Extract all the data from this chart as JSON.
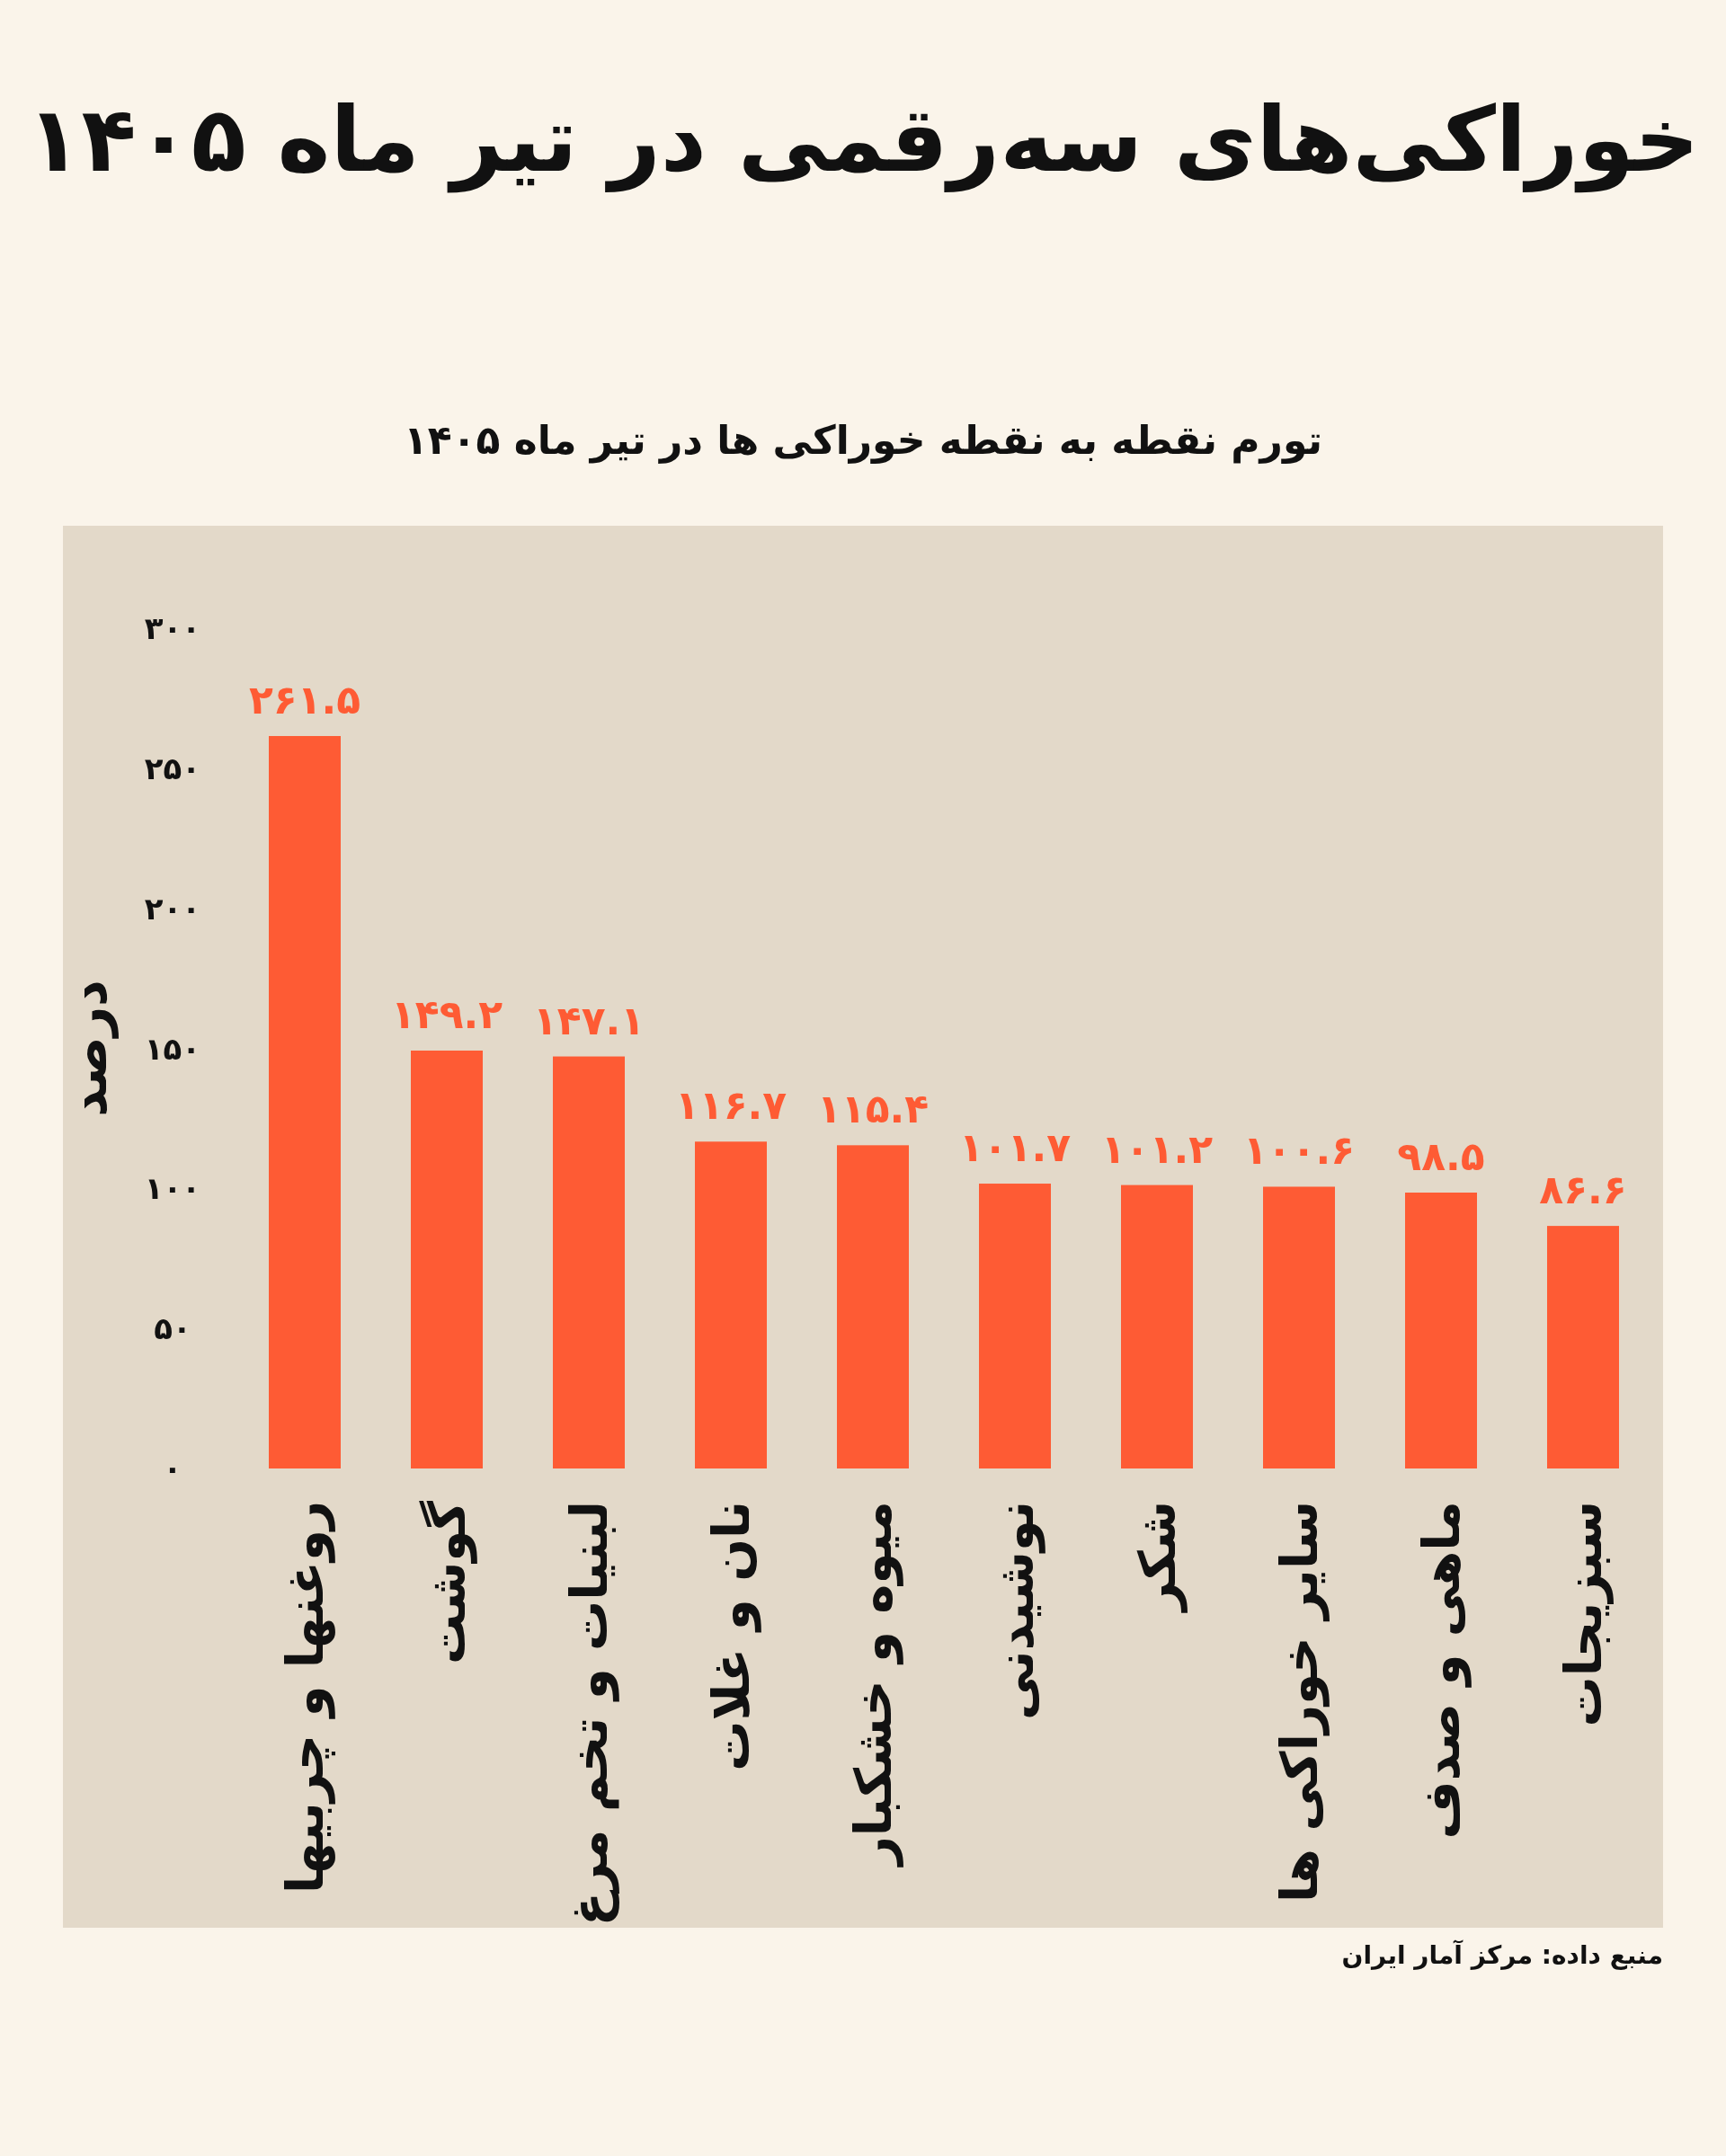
{
  "chart_data": {
    "type": "bar",
    "title": "خوراکی‌های سه‌رقمی در تیر ماه ۱۴۰۵",
    "subtitle": "تورم نقطه به نقطه خوراکی ها در تیر ماه ۱۴۰۵",
    "ylabel": "درصد",
    "categories": [
      "روغنها و چربیها",
      "گوشت",
      "لبنیات و تخم مرغ",
      "نان و غلات",
      "میوه و خشکبار",
      "نوشیدنی",
      "شکر",
      "سایر خوراکی ها",
      "ماهی و صدف",
      "سبزیجات"
    ],
    "values": [
      261.5,
      149.2,
      147.1,
      116.7,
      115.4,
      101.7,
      101.2,
      100.6,
      98.5,
      86.6
    ],
    "value_labels": [
      "۲۶۱.۵",
      "۱۴۹.۲",
      "۱۴۷.۱",
      "۱۱۶.۷",
      "۱۱۵.۴",
      "۱۰۱.۷",
      "۱۰۱.۲",
      "۱۰۰.۶",
      "۹۸.۵",
      "۸۶.۶"
    ],
    "color": "#fe5b34",
    "ylim": [
      0,
      300
    ],
    "yticks": [
      {
        "value": 0,
        "label": "۰"
      },
      {
        "value": 50,
        "label": "۵۰"
      },
      {
        "value": 100,
        "label": "۱۰۰"
      },
      {
        "value": 150,
        "label": "۱۵۰"
      },
      {
        "value": 200,
        "label": "۲۰۰"
      },
      {
        "value": 250,
        "label": "۲۵۰"
      },
      {
        "value": 300,
        "label": "۳۰۰"
      }
    ],
    "annotations": [
      "منبع داده: مرکز آمار ایران"
    ]
  }
}
